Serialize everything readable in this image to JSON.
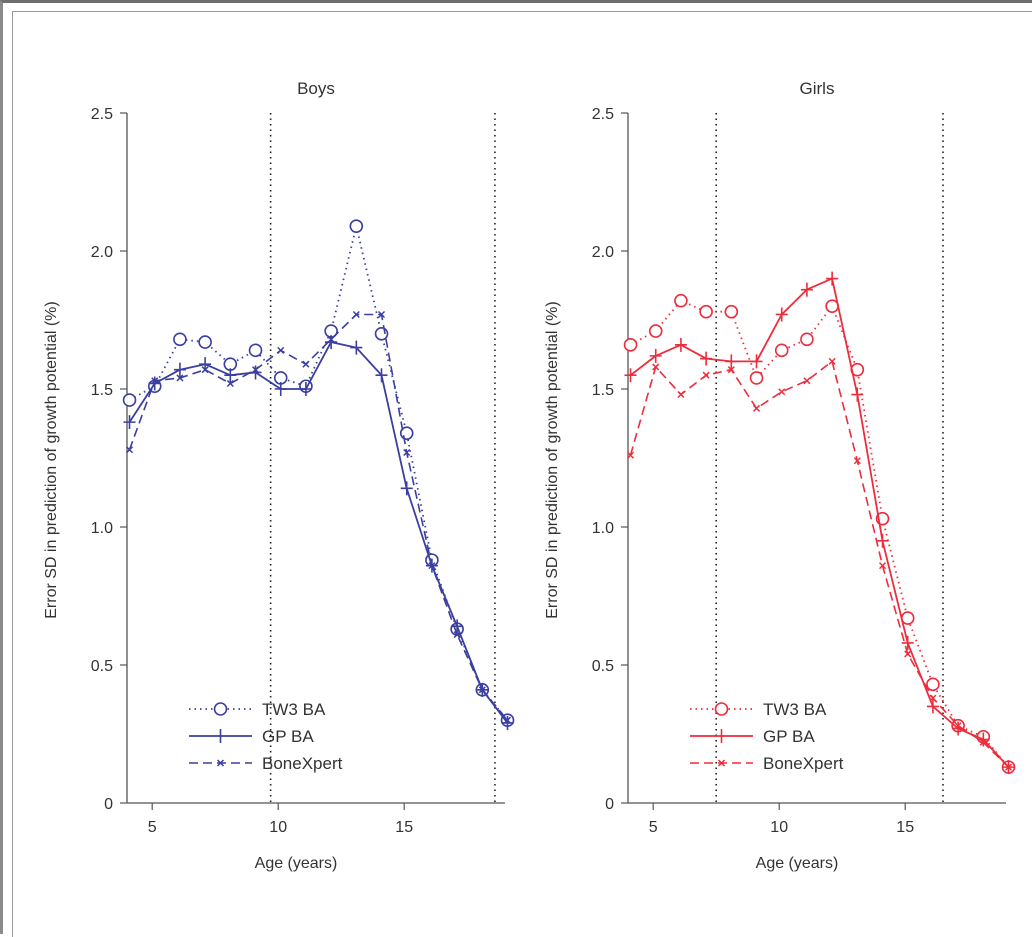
{
  "colors": {
    "boys": "#3a3fa0",
    "girls": "#ee2c3c",
    "axis": "#555555",
    "text": "#333333",
    "refline": "#222222"
  },
  "legend": {
    "placement": "bottom-left",
    "entries": [
      "TW3 BA",
      "GP BA",
      "BoneXpert"
    ]
  },
  "chart_data": [
    {
      "type": "line",
      "title": "Boys",
      "xlabel": "Age (years)",
      "ylabel": "Error SD in prediction of growth potential (%)",
      "xlim": [
        4,
        19
      ],
      "ylim": [
        0,
        2.5
      ],
      "xticks": [
        "5",
        "10",
        "15"
      ],
      "yticks": [
        "0",
        "0.5",
        "1.0",
        "1.5",
        "2.0",
        "2.5"
      ],
      "reference_lines_x": [
        9.7,
        18.6
      ],
      "series": [
        {
          "name": "TW3 BA",
          "style": "dotted-circle",
          "x": [
            4.1,
            5.1,
            6.1,
            7.1,
            8.1,
            9.1,
            10.1,
            11.1,
            12.1,
            13.1,
            14.1,
            15.1,
            16.1,
            17.1,
            18.1,
            19.1
          ],
          "values": [
            1.46,
            1.51,
            1.68,
            1.67,
            1.59,
            1.64,
            1.54,
            1.51,
            1.71,
            2.09,
            1.7,
            1.34,
            0.88,
            0.63,
            0.41,
            0.3
          ]
        },
        {
          "name": "GP BA",
          "style": "solid-plus",
          "x": [
            4.1,
            5.1,
            6.1,
            7.1,
            8.1,
            9.1,
            10.1,
            11.1,
            12.1,
            13.1,
            14.1,
            15.1,
            16.1,
            17.1,
            18.1,
            19.1
          ],
          "values": [
            1.38,
            1.52,
            1.57,
            1.59,
            1.55,
            1.56,
            1.5,
            1.5,
            1.67,
            1.65,
            1.55,
            1.14,
            0.86,
            0.64,
            0.41,
            0.29
          ]
        },
        {
          "name": "BoneXpert",
          "style": "dashed-x",
          "x": [
            4.1,
            5.1,
            6.1,
            7.1,
            8.1,
            9.1,
            10.1,
            11.1,
            12.1,
            13.1,
            14.1,
            15.1,
            16.1,
            17.1,
            18.1,
            19.1
          ],
          "values": [
            1.28,
            1.53,
            1.54,
            1.57,
            1.52,
            1.57,
            1.64,
            1.59,
            1.68,
            1.77,
            1.77,
            1.27,
            0.86,
            0.61,
            0.41,
            0.3
          ]
        }
      ]
    },
    {
      "type": "line",
      "title": "Girls",
      "xlabel": "Age (years)",
      "ylabel": "Error SD in prediction of growth potential (%)",
      "xlim": [
        4,
        19
      ],
      "ylim": [
        0,
        2.5
      ],
      "xticks": [
        "5",
        "10",
        "15"
      ],
      "yticks": [
        "0",
        "0.5",
        "1.0",
        "1.5",
        "2.0",
        "2.5"
      ],
      "reference_lines_x": [
        7.5,
        16.5
      ],
      "series": [
        {
          "name": "TW3 BA",
          "style": "dotted-circle",
          "x": [
            4.1,
            5.1,
            6.1,
            7.1,
            8.1,
            9.1,
            10.1,
            11.1,
            12.1,
            13.1,
            14.1,
            15.1,
            16.1,
            17.1,
            18.1,
            19.1
          ],
          "values": [
            1.66,
            1.71,
            1.82,
            1.78,
            1.78,
            1.54,
            1.64,
            1.68,
            1.8,
            1.57,
            1.03,
            0.67,
            0.43,
            0.28,
            0.24,
            0.13
          ]
        },
        {
          "name": "GP BA",
          "style": "solid-plus",
          "x": [
            4.1,
            5.1,
            6.1,
            7.1,
            8.1,
            9.1,
            10.1,
            11.1,
            12.1,
            13.1,
            14.1,
            15.1,
            16.1,
            17.1,
            18.1,
            19.1
          ],
          "values": [
            1.55,
            1.62,
            1.66,
            1.61,
            1.6,
            1.6,
            1.77,
            1.86,
            1.9,
            1.48,
            0.95,
            0.58,
            0.35,
            0.27,
            0.23,
            0.13
          ]
        },
        {
          "name": "BoneXpert",
          "style": "dashed-x",
          "x": [
            4.1,
            5.1,
            6.1,
            7.1,
            8.1,
            9.1,
            10.1,
            11.1,
            12.1,
            13.1,
            14.1,
            15.1,
            16.1,
            17.1,
            18.1,
            19.1
          ],
          "values": [
            1.26,
            1.58,
            1.48,
            1.55,
            1.57,
            1.43,
            1.49,
            1.53,
            1.6,
            1.24,
            0.86,
            0.54,
            0.38,
            0.28,
            0.22,
            0.13
          ]
        }
      ]
    }
  ]
}
